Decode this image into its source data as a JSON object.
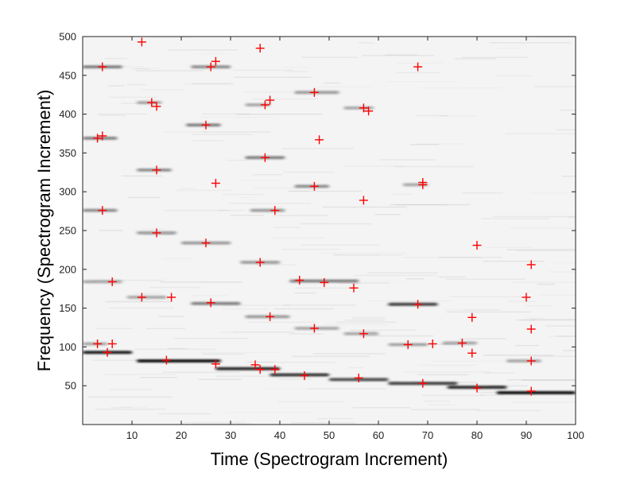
{
  "chart_data": {
    "type": "scatter",
    "background": "spectrogram",
    "xlabel": "Time (Spectrogram Increment)",
    "ylabel": "Frequency (Spectrogram Increment)",
    "xlim": [
      0,
      100
    ],
    "ylim": [
      0,
      500
    ],
    "xticks": [
      10,
      20,
      30,
      40,
      50,
      60,
      70,
      80,
      90,
      100
    ],
    "yticks": [
      50,
      100,
      150,
      200,
      250,
      300,
      350,
      400,
      450,
      500
    ],
    "grid": false,
    "marker": "+",
    "marker_color": "#ff0000",
    "spectrogram_color": "#000000",
    "points": [
      [
        12,
        493
      ],
      [
        36,
        485
      ],
      [
        4,
        461
      ],
      [
        26,
        461
      ],
      [
        27,
        468
      ],
      [
        68,
        461
      ],
      [
        47,
        428
      ],
      [
        14,
        415
      ],
      [
        15,
        410
      ],
      [
        37,
        412
      ],
      [
        38,
        418
      ],
      [
        57,
        408
      ],
      [
        58,
        404
      ],
      [
        25,
        386
      ],
      [
        3,
        369
      ],
      [
        4,
        372
      ],
      [
        48,
        367
      ],
      [
        37,
        344
      ],
      [
        15,
        328
      ],
      [
        27,
        311
      ],
      [
        47,
        307
      ],
      [
        69,
        309
      ],
      [
        69,
        312
      ],
      [
        57,
        289
      ],
      [
        4,
        276
      ],
      [
        39,
        276
      ],
      [
        15,
        247
      ],
      [
        25,
        234
      ],
      [
        80,
        231
      ],
      [
        36,
        209
      ],
      [
        91,
        206
      ],
      [
        6,
        184
      ],
      [
        44,
        186
      ],
      [
        49,
        183
      ],
      [
        55,
        176
      ],
      [
        12,
        164
      ],
      [
        18,
        164
      ],
      [
        90,
        164
      ],
      [
        26,
        157
      ],
      [
        68,
        155
      ],
      [
        38,
        139
      ],
      [
        79,
        138
      ],
      [
        47,
        124
      ],
      [
        91,
        123
      ],
      [
        57,
        117
      ],
      [
        3,
        104
      ],
      [
        6,
        104
      ],
      [
        66,
        103
      ],
      [
        71,
        104
      ],
      [
        77,
        105
      ],
      [
        5,
        93
      ],
      [
        79,
        92
      ],
      [
        17,
        83
      ],
      [
        27,
        78
      ],
      [
        35,
        77
      ],
      [
        36,
        71
      ],
      [
        39,
        71
      ],
      [
        91,
        82
      ],
      [
        45,
        63
      ],
      [
        56,
        60
      ],
      [
        69,
        53
      ],
      [
        80,
        47
      ],
      [
        91,
        43
      ]
    ],
    "streaks": [
      {
        "x": [
          0,
          10
        ],
        "y": 93,
        "strength": 0.85
      },
      {
        "x": [
          11,
          28
        ],
        "y": 82,
        "strength": 0.9
      },
      {
        "x": [
          27,
          40
        ],
        "y": 72,
        "strength": 0.8
      },
      {
        "x": [
          38,
          50
        ],
        "y": 64,
        "strength": 0.75
      },
      {
        "x": [
          50,
          62
        ],
        "y": 58,
        "strength": 0.65
      },
      {
        "x": [
          62,
          76
        ],
        "y": 53,
        "strength": 0.7
      },
      {
        "x": [
          74,
          86
        ],
        "y": 48,
        "strength": 0.8
      },
      {
        "x": [
          84,
          100
        ],
        "y": 41,
        "strength": 0.9
      },
      {
        "x": [
          62,
          72
        ],
        "y": 155,
        "strength": 0.7
      },
      {
        "x": [
          42,
          56
        ],
        "y": 185,
        "strength": 0.45
      },
      {
        "x": [
          22,
          32
        ],
        "y": 156,
        "strength": 0.45
      },
      {
        "x": [
          0,
          8
        ],
        "y": 461,
        "strength": 0.45
      },
      {
        "x": [
          22,
          30
        ],
        "y": 461,
        "strength": 0.4
      },
      {
        "x": [
          21,
          28
        ],
        "y": 386,
        "strength": 0.45
      },
      {
        "x": [
          0,
          7
        ],
        "y": 369,
        "strength": 0.45
      },
      {
        "x": [
          33,
          41
        ],
        "y": 344,
        "strength": 0.45
      },
      {
        "x": [
          11,
          18
        ],
        "y": 328,
        "strength": 0.4
      },
      {
        "x": [
          43,
          50
        ],
        "y": 307,
        "strength": 0.4
      },
      {
        "x": [
          43,
          52
        ],
        "y": 428,
        "strength": 0.35
      },
      {
        "x": [
          34,
          41
        ],
        "y": 276,
        "strength": 0.35
      },
      {
        "x": [
          0,
          7
        ],
        "y": 276,
        "strength": 0.4
      },
      {
        "x": [
          11,
          19
        ],
        "y": 247,
        "strength": 0.35
      },
      {
        "x": [
          20,
          30
        ],
        "y": 234,
        "strength": 0.35
      },
      {
        "x": [
          32,
          40
        ],
        "y": 209,
        "strength": 0.35
      },
      {
        "x": [
          0,
          8
        ],
        "y": 184,
        "strength": 0.3
      },
      {
        "x": [
          9,
          17
        ],
        "y": 164,
        "strength": 0.3
      },
      {
        "x": [
          33,
          42
        ],
        "y": 139,
        "strength": 0.35
      },
      {
        "x": [
          43,
          52
        ],
        "y": 124,
        "strength": 0.3
      },
      {
        "x": [
          53,
          60
        ],
        "y": 117,
        "strength": 0.3
      },
      {
        "x": [
          62,
          70
        ],
        "y": 103,
        "strength": 0.3
      },
      {
        "x": [
          73,
          80
        ],
        "y": 105,
        "strength": 0.3
      },
      {
        "x": [
          86,
          93
        ],
        "y": 82,
        "strength": 0.3
      },
      {
        "x": [
          33,
          38
        ],
        "y": 412,
        "strength": 0.3
      },
      {
        "x": [
          53,
          59
        ],
        "y": 408,
        "strength": 0.3
      },
      {
        "x": [
          11,
          16
        ],
        "y": 415,
        "strength": 0.3
      },
      {
        "x": [
          0,
          5
        ],
        "y": 104,
        "strength": 0.3
      },
      {
        "x": [
          65,
          70
        ],
        "y": 309,
        "strength": 0.3
      }
    ]
  }
}
